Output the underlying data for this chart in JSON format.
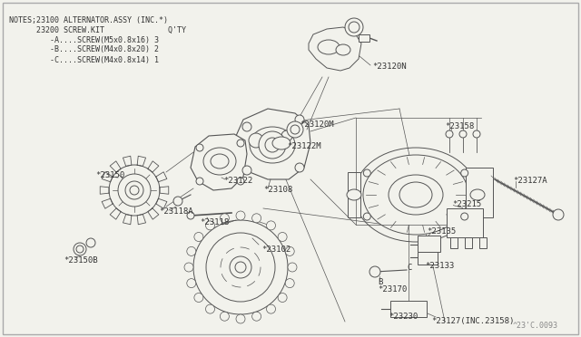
{
  "bg_color": "#f2f2ec",
  "line_color": "#555555",
  "text_color": "#333333",
  "light_line": "#888888",
  "notes_lines": [
    "NOTES;23100 ALTERNATOR.ASSY (INC.*)",
    "      23200 SCREW.KIT              Q'TY",
    "         -A....SCREW(M5x0.8x16) 3",
    "         -B....SCREW(M4x0.8x20) 2",
    "         -C....SCREW(M4x0.8x14) 1"
  ],
  "watermark": "^23'C.0093",
  "label_fs": 6.5
}
